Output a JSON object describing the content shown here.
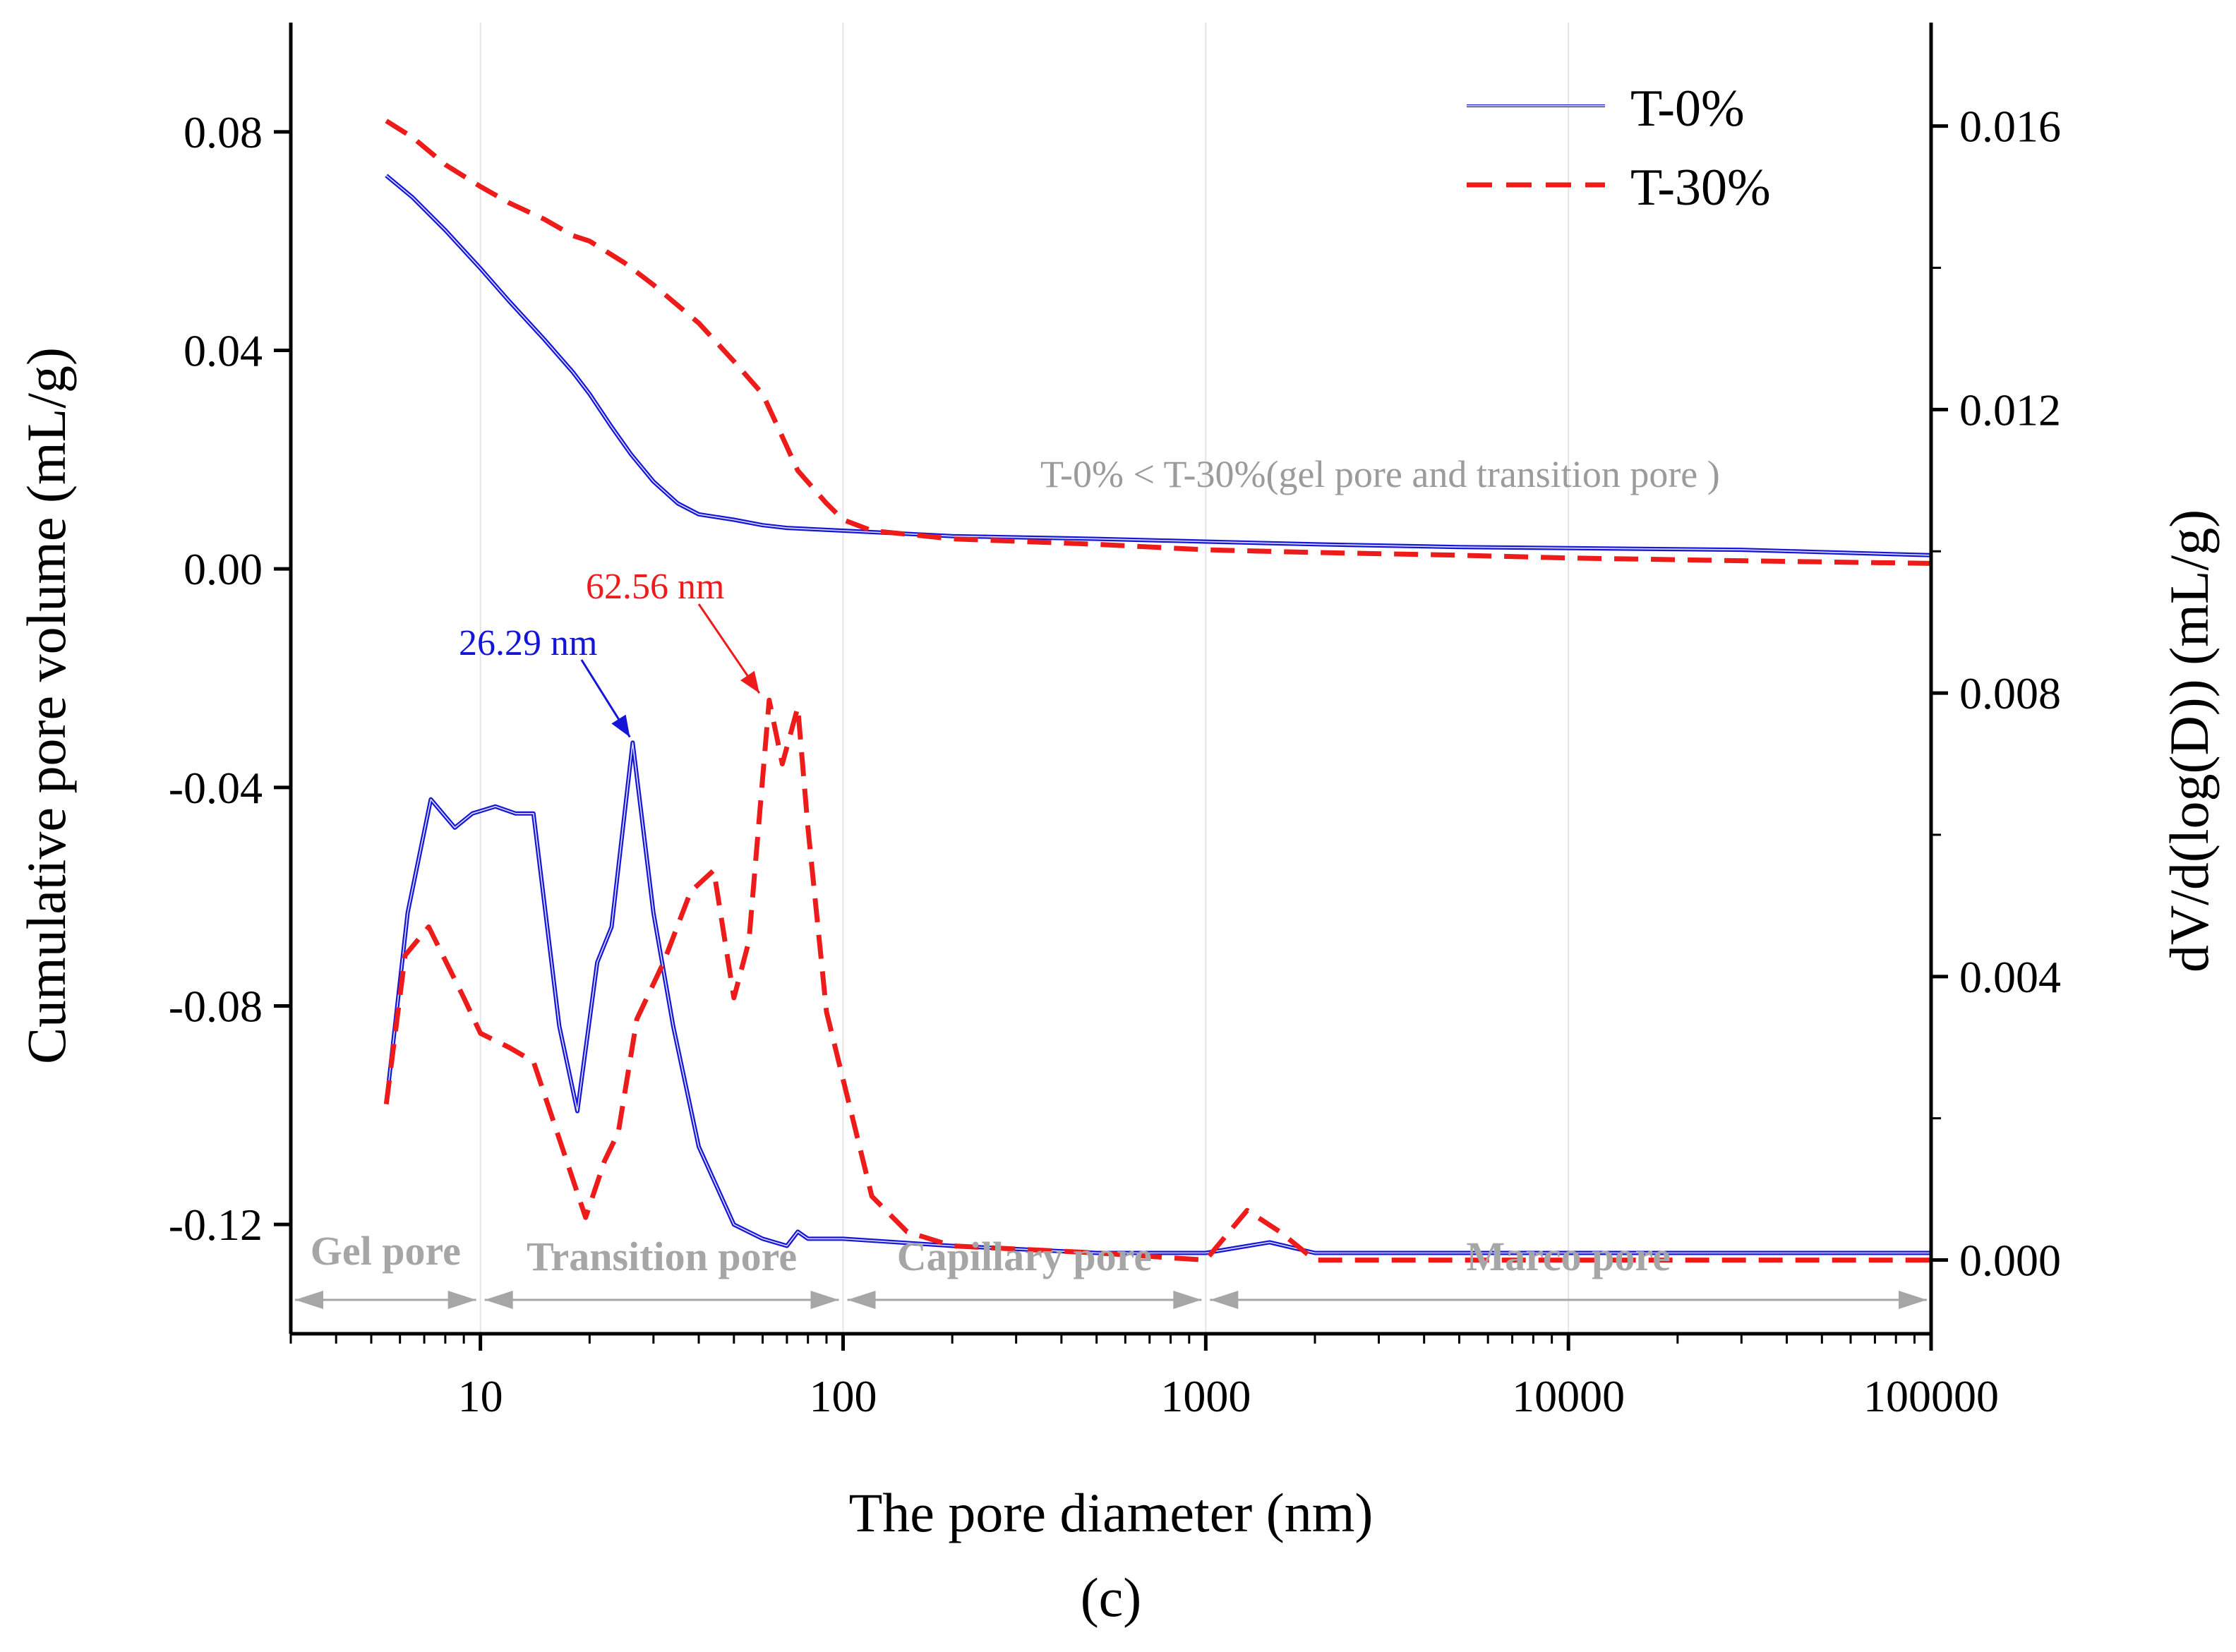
{
  "chart_data": {
    "type": "line",
    "title": "",
    "figure_label": "(c)",
    "xlabel": "The pore diameter (nm)",
    "ylabel_left": "Cumulative pore volume (mL/g)",
    "ylabel_right": "dV/d(log(D)) (mL/g)",
    "xscale": "log",
    "xlim": [
      3,
      100000
    ],
    "ylim_left": [
      -0.14,
      0.1
    ],
    "ylim_right": [
      -0.00104,
      0.01746
    ],
    "x_ticks": [
      10,
      100,
      1000,
      10000,
      100000
    ],
    "x_tick_labels": [
      "10",
      "100",
      "1000",
      "10000",
      "100000"
    ],
    "y_left_ticks": [
      0.08,
      0.04,
      0.0,
      -0.04,
      -0.08,
      -0.12
    ],
    "y_left_tick_labels": [
      "0.08",
      "0.04",
      "0.00",
      "-0.04",
      "-0.08",
      "-0.12"
    ],
    "y_right_ticks": [
      0.016,
      0.012,
      0.008,
      0.004,
      0.0
    ],
    "y_right_tick_labels": [
      "0.016",
      "0.012",
      "0.008",
      "0.004",
      "0.000"
    ],
    "legend_position": "top-right",
    "series": [
      {
        "name": "T-0%",
        "kind": "cumulative",
        "axis": "left",
        "color": "#1515d8",
        "style": "double",
        "x": [
          5.5,
          6.5,
          8,
          10,
          12,
          15,
          18,
          20,
          23,
          26,
          30,
          35,
          40,
          50,
          60,
          70,
          100,
          200,
          500,
          1000,
          2000,
          5000,
          10000,
          30000,
          100000
        ],
        "y": [
          0.072,
          0.068,
          0.062,
          0.055,
          0.049,
          0.042,
          0.036,
          0.032,
          0.026,
          0.021,
          0.016,
          0.012,
          0.01,
          0.009,
          0.008,
          0.0075,
          0.007,
          0.006,
          0.0055,
          0.005,
          0.0045,
          0.004,
          0.0038,
          0.0035,
          0.0025
        ]
      },
      {
        "name": "T-30%",
        "kind": "cumulative",
        "axis": "left",
        "color": "#ee1b1b",
        "style": "dashed",
        "x": [
          5.5,
          6.5,
          8,
          10,
          12,
          15,
          18,
          20,
          25,
          30,
          40,
          50,
          60,
          65,
          75,
          90,
          100,
          120,
          200,
          500,
          1000,
          2000,
          5000,
          10000,
          30000,
          100000
        ],
        "y": [
          0.082,
          0.079,
          0.074,
          0.07,
          0.067,
          0.064,
          0.061,
          0.06,
          0.056,
          0.052,
          0.045,
          0.038,
          0.032,
          0.027,
          0.018,
          0.012,
          0.009,
          0.007,
          0.0055,
          0.0045,
          0.0035,
          0.003,
          0.0025,
          0.002,
          0.0015,
          0.001
        ]
      },
      {
        "name": "T-0%",
        "kind": "differential",
        "axis": "right",
        "color": "#1515d8",
        "style": "double",
        "x": [
          5.5,
          6.3,
          7.3,
          8.5,
          9.5,
          11,
          12.5,
          14,
          16.5,
          18.5,
          21,
          23,
          26.29,
          30,
          34,
          40,
          50,
          60,
          70,
          75,
          80,
          100,
          200,
          500,
          1000,
          1500,
          2000,
          5000,
          10000,
          30000,
          100000
        ],
        "y": [
          0.0022,
          0.0049,
          0.0065,
          0.0061,
          0.0063,
          0.0064,
          0.0063,
          0.0063,
          0.0033,
          0.0021,
          0.0042,
          0.0047,
          0.0073,
          0.0049,
          0.0033,
          0.0016,
          0.0005,
          0.0003,
          0.0002,
          0.0004,
          0.0003,
          0.0003,
          0.0002,
          0.0001,
          0.0001,
          0.00025,
          0.0001,
          0.0001,
          0.0001,
          0.0001,
          0.0001
        ]
      },
      {
        "name": "T-30%",
        "kind": "differential",
        "axis": "right",
        "color": "#ee1b1b",
        "style": "dashed",
        "x": [
          5.5,
          6.2,
          7.2,
          9,
          10,
          12,
          14,
          19.5,
          22,
          24,
          27,
          32,
          38,
          44,
          50,
          55,
          62.56,
          68,
          75,
          80,
          90,
          120,
          150,
          200,
          500,
          1000,
          1300,
          1600,
          2000,
          5000,
          10000,
          30000,
          100000
        ],
        "y": [
          0.0022,
          0.0043,
          0.0047,
          0.0037,
          0.0032,
          0.003,
          0.0028,
          0.0006,
          0.0014,
          0.0018,
          0.0034,
          0.0042,
          0.0052,
          0.0055,
          0.0037,
          0.0045,
          0.0079,
          0.007,
          0.0078,
          0.0061,
          0.0035,
          0.0009,
          0.0004,
          0.0002,
          0.0001,
          0.0,
          0.0007,
          0.0004,
          0.0,
          0.0,
          0.0,
          0.0,
          0.0
        ]
      }
    ],
    "annotations": [
      {
        "text": "26.29 nm",
        "x": 26.29,
        "y": 0.0073,
        "axis": "right",
        "color": "#1515d8"
      },
      {
        "text": "62.56 nm",
        "x": 62.56,
        "y": 0.0079,
        "axis": "right",
        "color": "#ee1b1b"
      },
      {
        "text": "T-0% < T-30%(gel pore and transition pore )",
        "color": "#9b9b9b"
      }
    ],
    "regions": [
      {
        "label": "Gel pore",
        "from": 3,
        "to": 10
      },
      {
        "label": "Transition pore",
        "from": 10,
        "to": 100
      },
      {
        "label": "Capillary pore",
        "from": 100,
        "to": 1000
      },
      {
        "label": "Marco pore",
        "from": 1000,
        "to": 100000
      }
    ]
  }
}
